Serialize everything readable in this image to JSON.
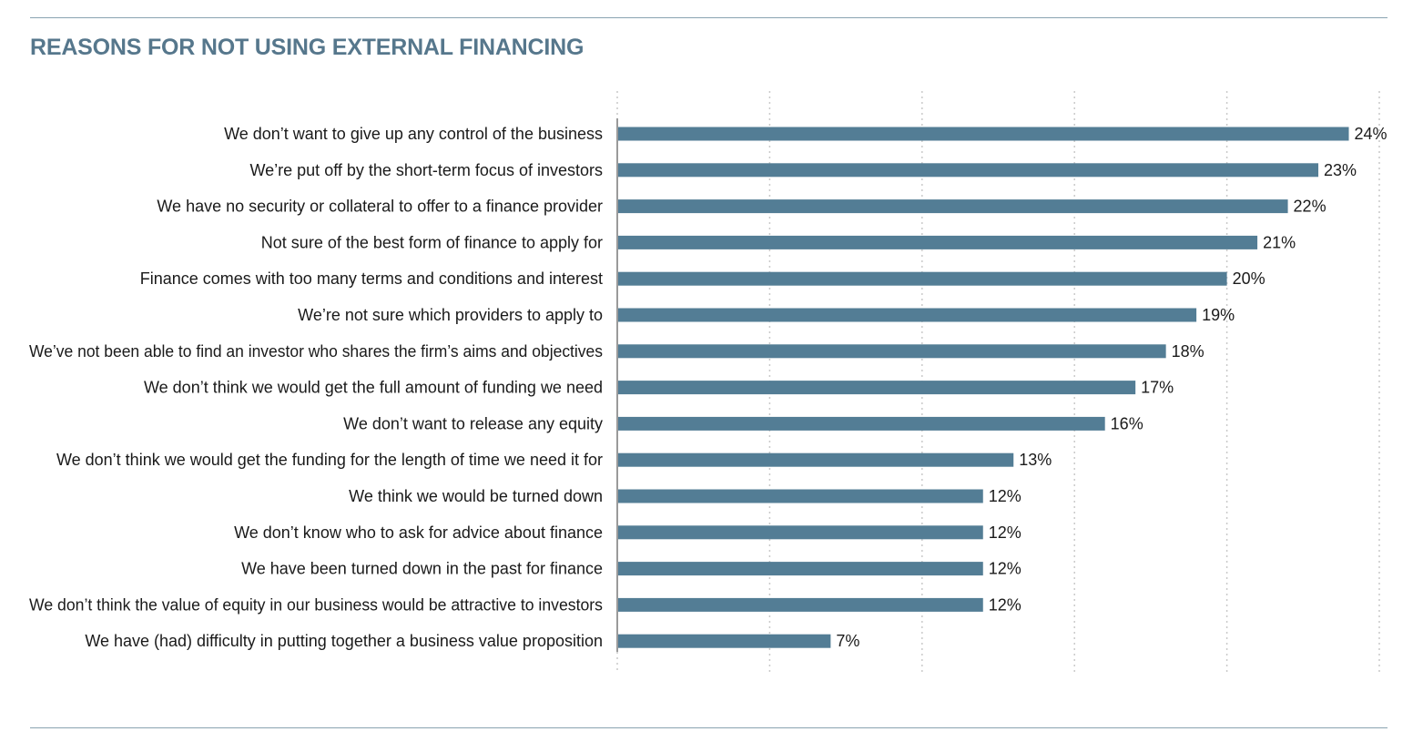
{
  "title": "REASONS FOR NOT USING EXTERNAL FINANCING",
  "colors": {
    "bar": "#537d95",
    "title": "#56778c",
    "rule": "#8aa3b1",
    "grid": "#c9c9c9",
    "axis": "#9a9a9a"
  },
  "chart_data": {
    "type": "bar",
    "orientation": "horizontal",
    "title": "REASONS FOR NOT USING EXTERNAL FINANCING",
    "xlabel": "",
    "ylabel": "",
    "xlim": [
      0,
      25
    ],
    "grid": true,
    "categories": [
      "We don’t want to give up any control of the business",
      "We’re put off by the short-term focus of investors",
      "We have no security or collateral to offer to a finance provider",
      "Not sure of the best form of finance to apply for",
      "Finance comes with too many terms and conditions and interest",
      "We’re not sure which providers to apply to",
      "We’ve not been able to find an investor who shares the firm’s aims and objectives",
      "We don’t think we would get the full amount of funding we need",
      "We don’t want to release any equity",
      "We don’t think we would get the funding for the length of time we need it for",
      "We think we would be turned down",
      "We don’t know who to ask for advice about finance",
      "We have been turned down in the past for finance",
      "We don’t think the value of equity in our business would be attractive to investors",
      "We have (had) difficulty in putting together a business value proposition"
    ],
    "values": [
      24,
      23,
      22,
      21,
      20,
      19,
      18,
      17,
      16,
      13,
      12,
      12,
      12,
      12,
      7
    ],
    "value_labels": [
      "24%",
      "23%",
      "22%",
      "21%",
      "20%",
      "19%",
      "18%",
      "17%",
      "16%",
      "13%",
      "12%",
      "12%",
      "12%",
      "12%",
      "7%"
    ]
  }
}
